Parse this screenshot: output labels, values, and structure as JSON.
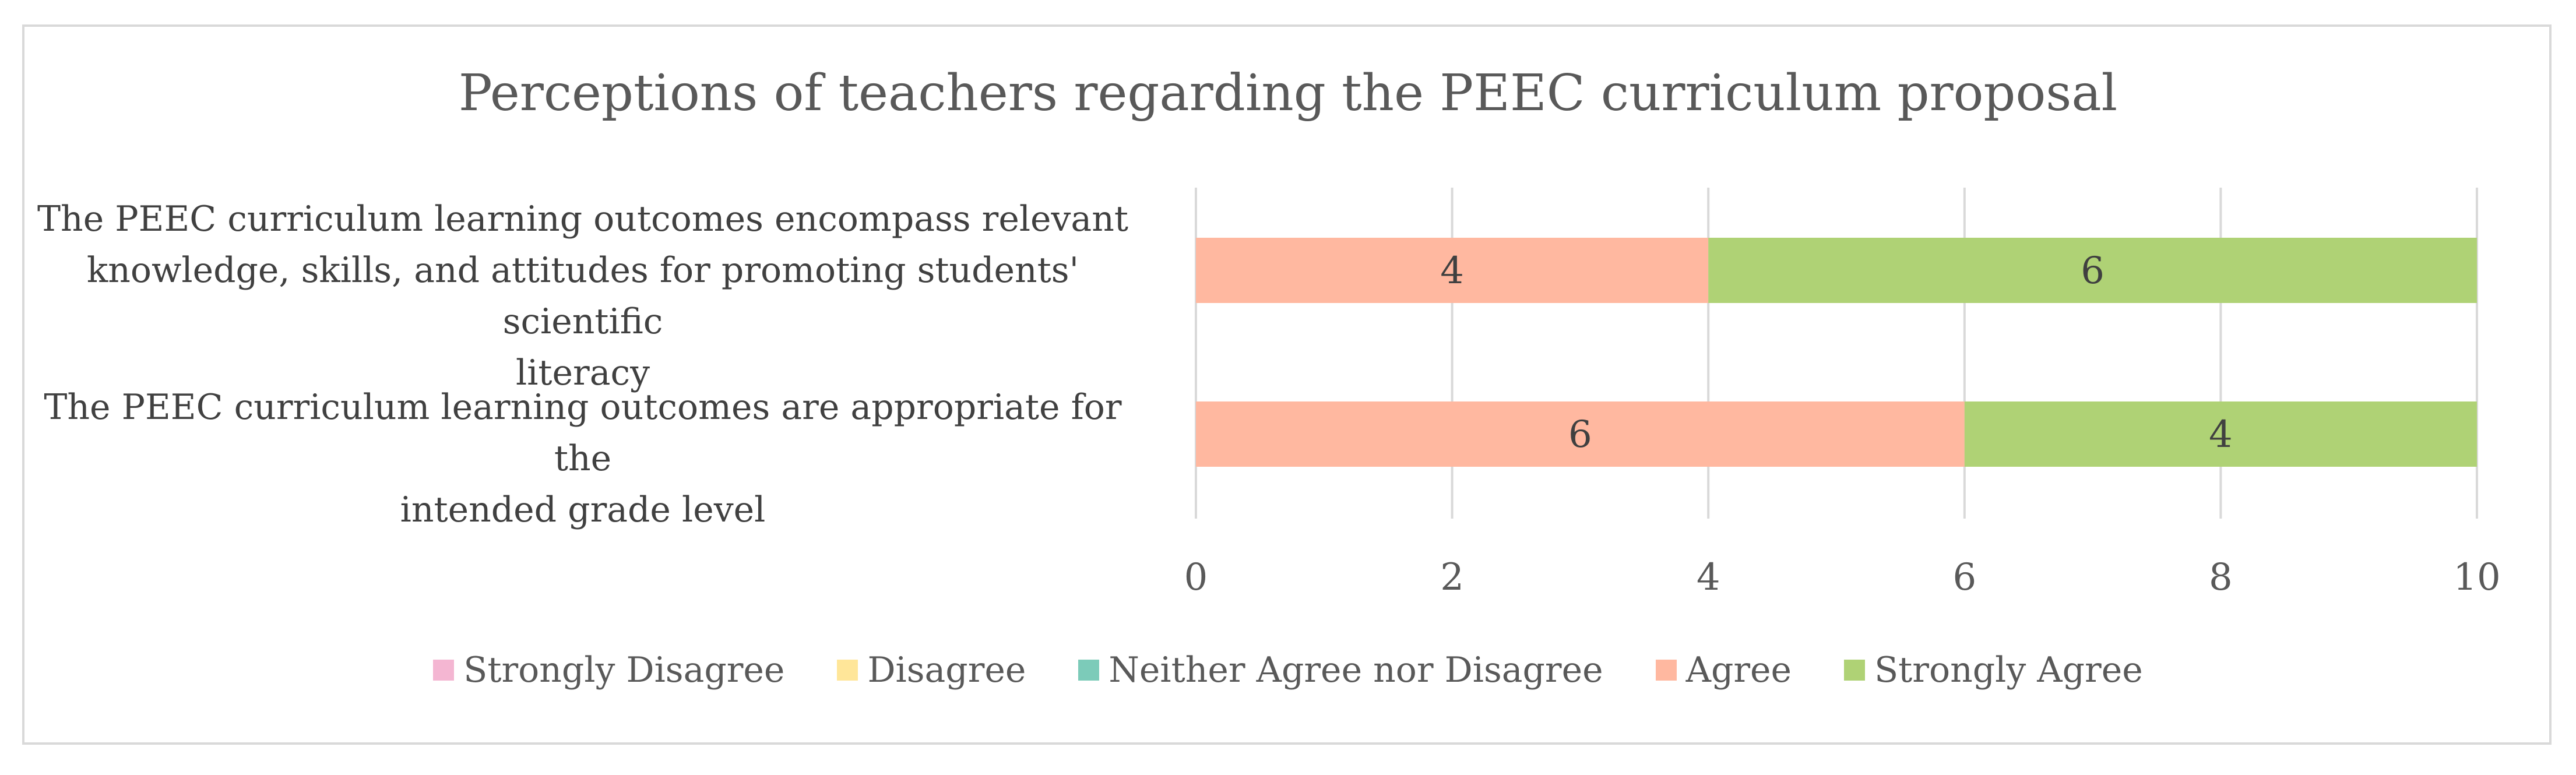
{
  "chart_data": {
    "type": "bar",
    "orientation": "horizontal",
    "stacked": true,
    "title": "Perceptions of teachers regarding the PEEC curriculum proposal",
    "categories": [
      "The PEEC curriculum learning outcomes encompass relevant knowledge, skills, and attitudes for promoting students' scientific literacy",
      "The PEEC curriculum learning outcomes are appropriate for the intended grade level"
    ],
    "category_lines": [
      [
        "The PEEC curriculum learning outcomes encompass relevant",
        "knowledge, skills, and attitudes for promoting students' scientific",
        "literacy"
      ],
      [
        "The PEEC curriculum learning outcomes are appropriate for the",
        "intended grade level"
      ]
    ],
    "series": [
      {
        "name": "Strongly Disagree",
        "color": "#f4b6d2",
        "values": [
          0,
          0
        ]
      },
      {
        "name": "Disagree",
        "color": "#ffe699",
        "values": [
          0,
          0
        ]
      },
      {
        "name": "Neither Agree nor Disagree",
        "color": "#7ccbb9",
        "values": [
          0,
          0
        ]
      },
      {
        "name": "Agree",
        "color": "#ffb8a0",
        "values": [
          4,
          6
        ]
      },
      {
        "name": "Strongly Agree",
        "color": "#afd275",
        "values": [
          6,
          4
        ]
      }
    ],
    "xlim": [
      0,
      10
    ],
    "xticks": [
      "0",
      "2",
      "4",
      "6",
      "8",
      "10"
    ],
    "grid": true,
    "legend_position": "bottom"
  }
}
